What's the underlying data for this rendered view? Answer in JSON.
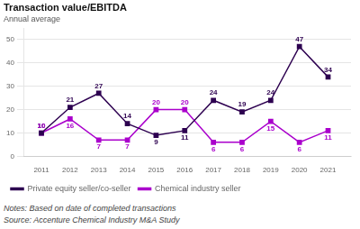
{
  "chart_data": {
    "type": "line",
    "title": "Transaction value/EBITDA",
    "subtitle": "Annual average",
    "x": [
      2011,
      2012,
      2013,
      2014,
      2015,
      2016,
      2017,
      2018,
      2019,
      2020,
      2021
    ],
    "series": [
      {
        "name": "Private equity seller/co-seller",
        "color": "#2d0050",
        "marker": "square",
        "values": [
          10,
          21,
          27,
          14,
          9,
          11,
          24,
          19,
          24,
          47,
          34
        ]
      },
      {
        "name": "Chemical industry seller",
        "color": "#aa00cc",
        "marker": "square",
        "values": [
          10,
          16,
          7,
          7,
          20,
          20,
          6,
          6,
          15,
          6,
          11
        ]
      }
    ],
    "xlim": [
      2010.4,
      2021.8
    ],
    "xticks": [
      2011,
      2012,
      2013,
      2014,
      2015,
      2016,
      2017,
      2018,
      2019,
      2020,
      2021
    ],
    "ylim": [
      0,
      55
    ],
    "yticks": [
      0,
      10,
      20,
      30,
      40,
      50
    ],
    "grid": "y",
    "legend": "bottom",
    "data_labels": true,
    "notes": [
      "Notes: Based on date of completed transactions",
      "Source: Accenture Chemical Industry M&A Study"
    ]
  }
}
